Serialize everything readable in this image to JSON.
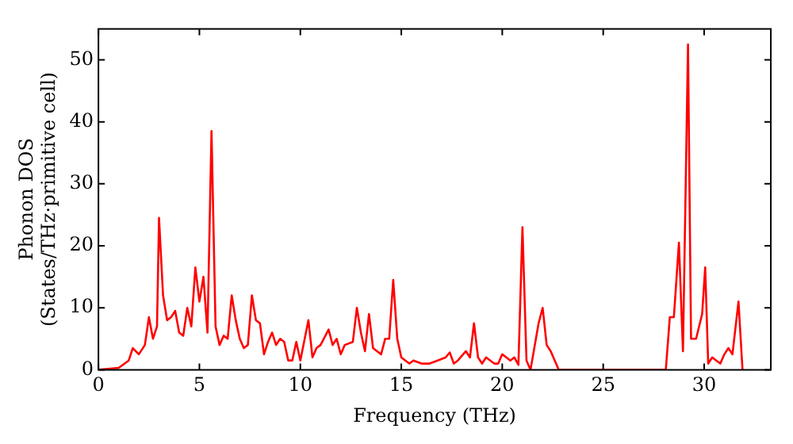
{
  "chart_data": {
    "type": "line",
    "xlabel": "Frequency (THz)",
    "ylabel": "Phonon DOS\n(States/THz·primitive cell)",
    "xlim": [
      0,
      33.3
    ],
    "ylim": [
      0,
      55
    ],
    "xticks": [
      0,
      5,
      10,
      15,
      20,
      25,
      30
    ],
    "yticks": [
      0,
      10,
      20,
      30,
      40,
      50
    ],
    "grid": false,
    "legend": false,
    "marker": "none",
    "line_style": "solid",
    "series": [
      {
        "color": "#ff0000",
        "x": [
          0,
          1,
          1.5,
          1.7,
          2,
          2.3,
          2.5,
          2.7,
          2.9,
          3,
          3.2,
          3.4,
          3.6,
          3.8,
          4,
          4.2,
          4.4,
          4.6,
          4.8,
          5,
          5.2,
          5.4,
          5.6,
          5.8,
          6,
          6.2,
          6.4,
          6.6,
          6.8,
          7,
          7.2,
          7.4,
          7.6,
          7.8,
          8,
          8.2,
          8.4,
          8.6,
          8.8,
          9,
          9.2,
          9.4,
          9.6,
          9.8,
          10,
          10.4,
          10.6,
          10.8,
          11,
          11.4,
          11.6,
          11.8,
          12,
          12.2,
          12.6,
          12.8,
          13,
          13.2,
          13.4,
          13.6,
          13.8,
          14,
          14.2,
          14.4,
          14.6,
          14.8,
          15,
          15.2,
          15.4,
          15.6,
          16,
          16.4,
          16.8,
          17.2,
          17.4,
          17.6,
          17.8,
          18.2,
          18.4,
          18.6,
          18.8,
          19,
          19.2,
          19.6,
          19.8,
          20,
          20.2,
          20.4,
          20.6,
          20.8,
          21,
          21.2,
          21.4,
          21.8,
          22,
          22.2,
          22.4,
          22.8,
          28.1,
          28.3,
          28.5,
          28.75,
          28.95,
          29.2,
          29.35,
          29.6,
          29.9,
          30.05,
          30.2,
          30.4,
          30.6,
          30.8,
          31,
          31.2,
          31.4,
          31.7,
          31.9
        ],
        "values": [
          0,
          0.3,
          1.5,
          3.5,
          2.5,
          4,
          8.5,
          5,
          7,
          24.5,
          12,
          8,
          8.5,
          9.5,
          6,
          5.5,
          10,
          7,
          16.5,
          11,
          15,
          6,
          38.5,
          7,
          4,
          5.5,
          5,
          12,
          8,
          5,
          3.5,
          4,
          12,
          8,
          7.5,
          2.5,
          4.5,
          6,
          4,
          5,
          4.5,
          1.5,
          1.5,
          4.5,
          1.5,
          8,
          2,
          3.5,
          4,
          6.5,
          4,
          5,
          2.5,
          4,
          4.5,
          10,
          6,
          3,
          9,
          3.5,
          3,
          2.5,
          5,
          5,
          14.5,
          5,
          2,
          1.5,
          1,
          1.5,
          1,
          1,
          1.5,
          2,
          2.8,
          1,
          1.5,
          3,
          2,
          7.5,
          2,
          1,
          2,
          1,
          1,
          2.5,
          2,
          1.5,
          2,
          0.8,
          23,
          1.5,
          0,
          7.5,
          10,
          4,
          3,
          0,
          0,
          8.5,
          8.5,
          20.5,
          3,
          52.5,
          5,
          5,
          9,
          16.5,
          1,
          2,
          1.5,
          1,
          2.5,
          3.5,
          2.5,
          11,
          0
        ]
      }
    ]
  }
}
